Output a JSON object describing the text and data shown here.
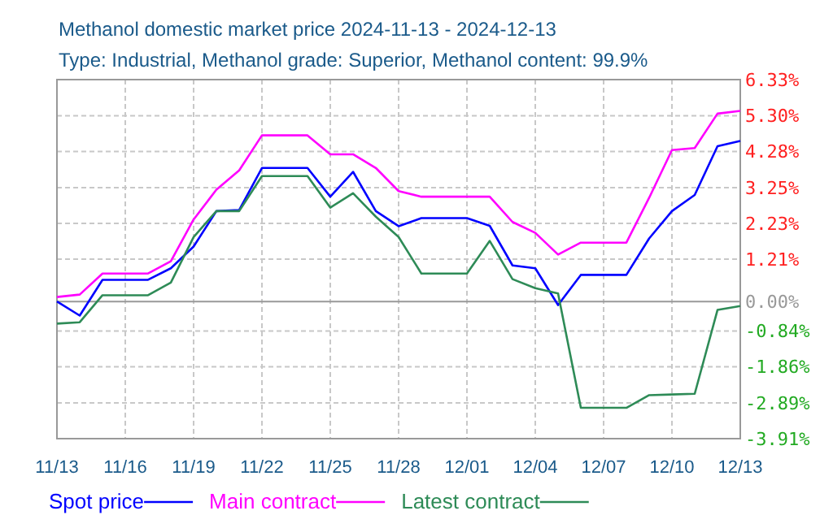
{
  "chart_data": {
    "type": "line",
    "title": "Methanol domestic market price 2024-11-13 - 2024-12-13",
    "subtitle": "Type: Industrial, Methanol grade: Superior, Methanol content: 99.9%",
    "x": [
      "2024-11-13",
      "2024-11-14",
      "2024-11-15",
      "2024-11-16",
      "2024-11-17",
      "2024-11-18",
      "2024-11-19",
      "2024-11-20",
      "2024-11-21",
      "2024-11-22",
      "2024-11-23",
      "2024-11-24",
      "2024-11-25",
      "2024-11-26",
      "2024-11-27",
      "2024-11-28",
      "2024-11-29",
      "2024-11-30",
      "2024-12-01",
      "2024-12-02",
      "2024-12-03",
      "2024-12-04",
      "2024-12-05",
      "2024-12-06",
      "2024-12-07",
      "2024-12-08",
      "2024-12-09",
      "2024-12-10",
      "2024-12-11",
      "2024-12-12",
      "2024-12-13"
    ],
    "series": [
      {
        "name": "Spot price",
        "color": "#0000ff",
        "values": [
          0.0,
          -0.4,
          0.62,
          0.62,
          0.62,
          0.95,
          1.57,
          2.58,
          2.61,
          3.81,
          3.81,
          3.81,
          2.99,
          3.7,
          2.58,
          2.15,
          2.38,
          2.38,
          2.38,
          2.16,
          1.03,
          0.95,
          -0.1,
          0.76,
          0.76,
          0.76,
          1.8,
          2.58,
          3.04,
          4.43,
          4.58
        ]
      },
      {
        "name": "Main contract",
        "color": "#ff00ff",
        "values": [
          0.13,
          0.2,
          0.8,
          0.8,
          0.8,
          1.15,
          2.34,
          3.19,
          3.74,
          4.74,
          4.74,
          4.74,
          4.2,
          4.2,
          3.81,
          3.15,
          2.99,
          2.99,
          2.99,
          2.99,
          2.27,
          1.96,
          1.34,
          1.68,
          1.68,
          1.68,
          2.96,
          4.32,
          4.38,
          5.36,
          5.44
        ]
      },
      {
        "name": "Latest contract",
        "color": "#2e8b57",
        "values": [
          -0.63,
          -0.59,
          0.18,
          0.18,
          0.18,
          0.54,
          1.84,
          2.58,
          2.58,
          3.58,
          3.58,
          3.58,
          2.68,
          3.09,
          2.42,
          1.84,
          0.8,
          0.8,
          0.8,
          1.73,
          0.64,
          0.38,
          0.23,
          -3.03,
          -3.03,
          -3.03,
          -2.67,
          -2.65,
          -2.63,
          -0.24,
          -0.13
        ]
      }
    ],
    "xlim": [
      "2024-11-13",
      "2024-12-13"
    ],
    "xticks": [
      {
        "value": "2024-11-13",
        "label": "11/13"
      },
      {
        "value": "2024-11-16",
        "label": "11/16"
      },
      {
        "value": "2024-11-19",
        "label": "11/19"
      },
      {
        "value": "2024-11-22",
        "label": "11/22"
      },
      {
        "value": "2024-11-25",
        "label": "11/25"
      },
      {
        "value": "2024-11-28",
        "label": "11/28"
      },
      {
        "value": "2024-12-01",
        "label": "12/01"
      },
      {
        "value": "2024-12-04",
        "label": "12/04"
      },
      {
        "value": "2024-12-07",
        "label": "12/07"
      },
      {
        "value": "2024-12-10",
        "label": "12/10"
      },
      {
        "value": "2024-12-13",
        "label": "12/13"
      }
    ],
    "ylim": [
      -3.91,
      6.33
    ],
    "yticks": [
      {
        "value": 6.33,
        "label": "6.33%"
      },
      {
        "value": 5.3,
        "label": "5.30%"
      },
      {
        "value": 4.28,
        "label": "4.28%"
      },
      {
        "value": 3.25,
        "label": "3.25%"
      },
      {
        "value": 2.23,
        "label": "2.23%"
      },
      {
        "value": 1.21,
        "label": "1.21%"
      },
      {
        "value": 0,
        "label": "0.00%"
      },
      {
        "value": -0.84,
        "label": "-0.84%"
      },
      {
        "value": -1.86,
        "label": "-1.86%"
      },
      {
        "value": -2.89,
        "label": "-2.89%"
      },
      {
        "value": -3.91,
        "label": "-3.91%"
      }
    ],
    "grid": true,
    "legend": "bottom",
    "marker": "none",
    "line_style": "solid"
  }
}
